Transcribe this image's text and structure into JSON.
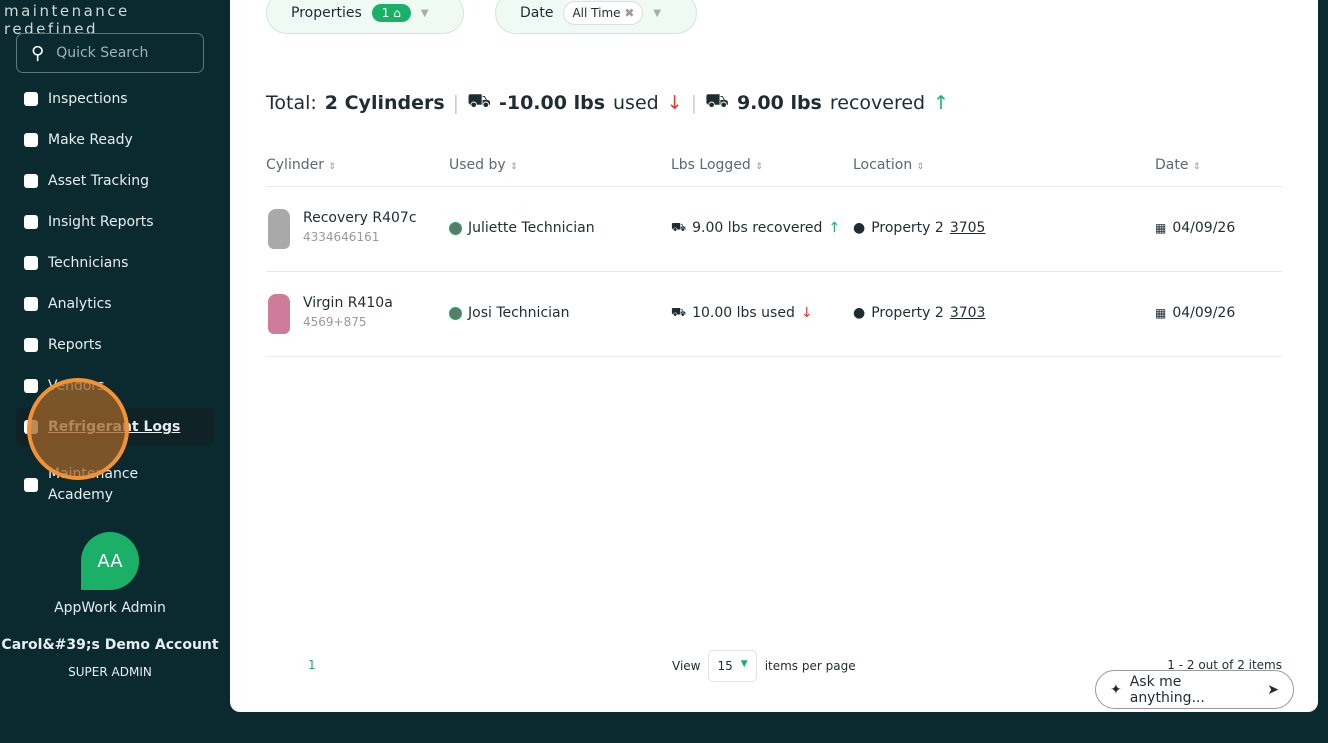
{
  "sidebar": {
    "tagline": "maintenance redefined",
    "search_placeholder": "Quick Search",
    "items": [
      {
        "label": "Inspections"
      },
      {
        "label": "Make Ready"
      },
      {
        "label": "Asset Tracking"
      },
      {
        "label": "Insight Reports"
      },
      {
        "label": "Technicians"
      },
      {
        "label": "Analytics"
      },
      {
        "label": "Reports"
      },
      {
        "label": "Vendors"
      },
      {
        "label": "Refrigerant Logs",
        "active": true
      },
      {
        "label": "Maintenance Academy"
      }
    ],
    "user": {
      "initials": "AA",
      "name": "AppWork Admin",
      "account": "Carol&#39;s Demo Account",
      "role": "SUPER ADMIN"
    }
  },
  "filters": {
    "properties_label": "Properties",
    "properties_count": "1",
    "date_label": "Date",
    "date_value": "All Time"
  },
  "total": {
    "label": "Total:",
    "cylinders": "2 Cylinders",
    "used_value": "-10.00 lbs",
    "used_label": "used",
    "recovered_value": "9.00 lbs",
    "recovered_label": "recovered"
  },
  "table": {
    "headers": [
      "Cylinder",
      "Used by",
      "Lbs Logged",
      "Location",
      "Date"
    ],
    "rows": [
      {
        "name": "Recovery R407c",
        "serial": "4334646161",
        "color": "#a9a9a9",
        "user": "Juliette Technician",
        "lbs": "9.00 lbs recovered",
        "dir": "up",
        "property": "Property 2",
        "unit": "3705",
        "date": "04/09/26"
      },
      {
        "name": "Virgin R410a",
        "serial": "4569+875",
        "color": "#cf7c9a",
        "user": "Josi Technician",
        "lbs": "10.00 lbs used",
        "dir": "down",
        "property": "Property 2",
        "unit": "3703",
        "date": "04/09/26"
      }
    ]
  },
  "pagination": {
    "page": "1",
    "view_label": "View",
    "per_page": "15",
    "per_page_label": "items per page",
    "count": "1 - 2 out of 2 items"
  },
  "assistant": {
    "placeholder": "Ask me anything..."
  }
}
